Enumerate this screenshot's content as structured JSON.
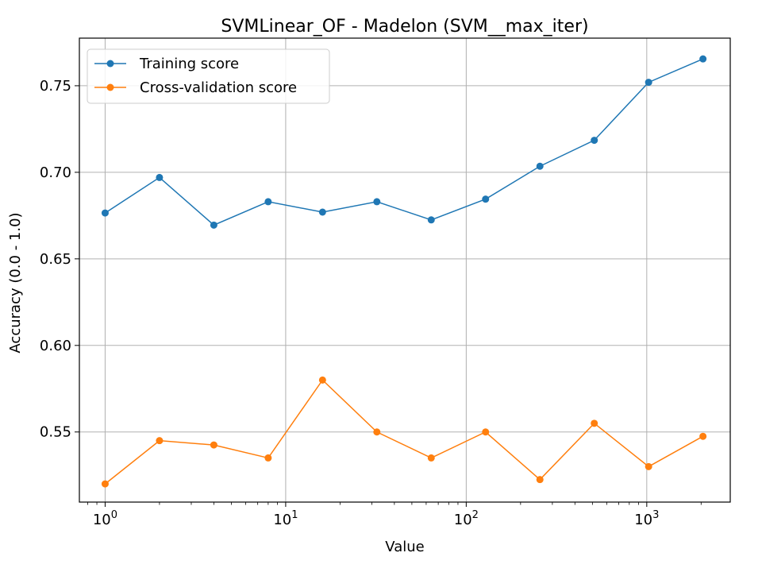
{
  "chart_data": {
    "type": "line",
    "title": "SVMLinear_OF - Madelon (SVM__max_iter)",
    "xlabel": "Value",
    "ylabel": "Accuracy (0.0 - 1.0)",
    "xscale": "log",
    "xlim": [
      0.72,
      2900
    ],
    "ylim": [
      0.5095,
      0.7775
    ],
    "grid": true,
    "legend_position": "top-left",
    "x": [
      1,
      2,
      4,
      8,
      16,
      32,
      64,
      128,
      256,
      512,
      1024,
      2048
    ],
    "yticks": [
      "0.55",
      "0.60",
      "0.65",
      "0.70",
      "0.75"
    ],
    "xticks": [
      {
        "base": "10",
        "exp": "0"
      },
      {
        "base": "10",
        "exp": "1"
      },
      {
        "base": "10",
        "exp": "2"
      },
      {
        "base": "10",
        "exp": "3"
      }
    ],
    "series": [
      {
        "name": "Training score",
        "color": "#1f77b4",
        "values": [
          0.6765,
          0.697,
          0.6695,
          0.683,
          0.677,
          0.683,
          0.6725,
          0.6845,
          0.7035,
          0.7185,
          0.752,
          0.7655
        ]
      },
      {
        "name": "Cross-validation score",
        "color": "#ff7f0e",
        "values": [
          0.52,
          0.545,
          0.5425,
          0.535,
          0.58,
          0.55,
          0.535,
          0.55,
          0.5225,
          0.555,
          0.53,
          0.5475
        ]
      }
    ]
  }
}
